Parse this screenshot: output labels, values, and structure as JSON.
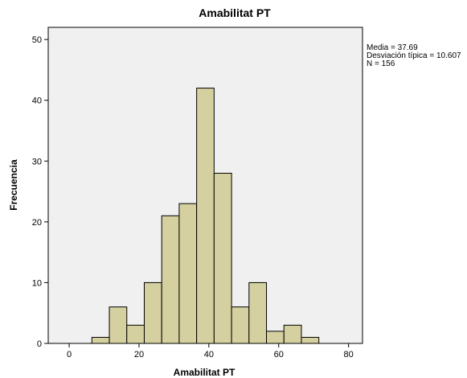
{
  "chart_data": {
    "type": "bar",
    "title": "Amabilitat PT",
    "xlabel": "Amabilitat PT",
    "ylabel": "Frecuencia",
    "xlim": [
      -6,
      84
    ],
    "ylim": [
      0,
      52
    ],
    "x_ticks": [
      "0",
      "20",
      "40",
      "60",
      "80"
    ],
    "y_ticks": [
      "0",
      "10",
      "20",
      "30",
      "40",
      "50"
    ],
    "bins": [
      {
        "start": 6.5,
        "end": 11.5,
        "value": 1
      },
      {
        "start": 11.5,
        "end": 16.5,
        "value": 6
      },
      {
        "start": 16.5,
        "end": 21.5,
        "value": 3
      },
      {
        "start": 21.5,
        "end": 26.5,
        "value": 10
      },
      {
        "start": 26.5,
        "end": 31.5,
        "value": 21
      },
      {
        "start": 31.5,
        "end": 36.5,
        "value": 23
      },
      {
        "start": 36.5,
        "end": 41.5,
        "value": 42
      },
      {
        "start": 41.5,
        "end": 46.5,
        "value": 28
      },
      {
        "start": 46.5,
        "end": 51.5,
        "value": 6
      },
      {
        "start": 51.5,
        "end": 56.5,
        "value": 10
      },
      {
        "start": 56.5,
        "end": 61.5,
        "value": 2
      },
      {
        "start": 61.5,
        "end": 66.5,
        "value": 3
      },
      {
        "start": 66.5,
        "end": 71.5,
        "value": 1
      }
    ],
    "stats": [
      "Media = 37.69",
      "Desviación típica = 10.607",
      "N = 156"
    ],
    "colors": {
      "bar_fill": "#d5d0a0",
      "bar_stroke": "#000000",
      "plot_background": "#f0f0f0"
    }
  }
}
